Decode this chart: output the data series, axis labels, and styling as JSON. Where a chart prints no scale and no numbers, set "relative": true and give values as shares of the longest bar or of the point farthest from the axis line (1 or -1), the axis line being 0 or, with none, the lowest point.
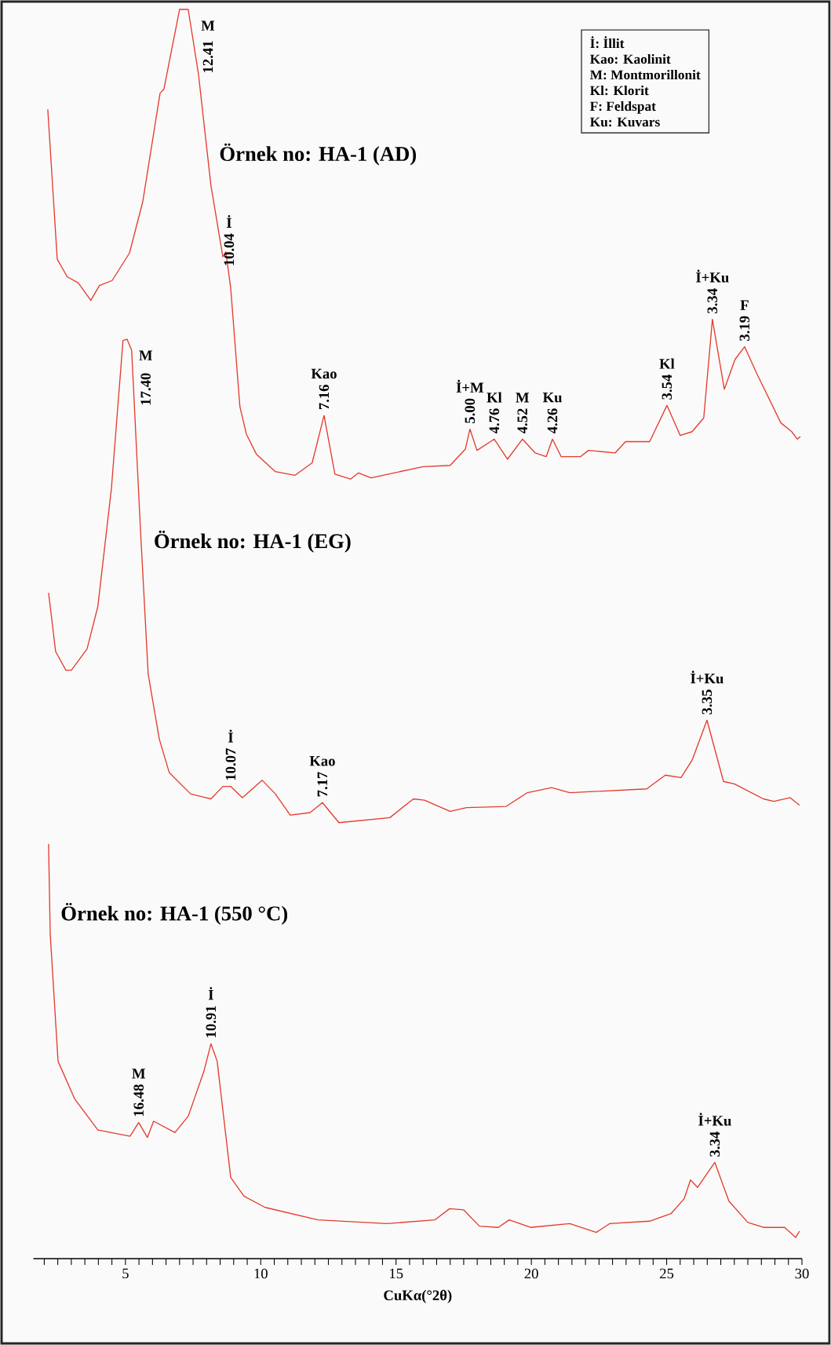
{
  "chart_data": {
    "type": "line",
    "relative": true,
    "xlabel": "CuKα(°2θ)",
    "xlim": [
      1.6,
      30
    ],
    "xticks": [
      {
        "value": 2,
        "label": null
      },
      {
        "value": 2.5,
        "label": null
      },
      {
        "value": 3,
        "label": null
      },
      {
        "value": 3.5,
        "label": null
      },
      {
        "value": 4,
        "label": null
      },
      {
        "value": 4.5,
        "label": null
      },
      5,
      {
        "value": 5.5,
        "label": null
      },
      {
        "value": 6,
        "label": null
      },
      {
        "value": 6.5,
        "label": null
      },
      {
        "value": 7,
        "label": null
      },
      {
        "value": 7.5,
        "label": null
      },
      {
        "value": 8,
        "label": null
      },
      {
        "value": 8.5,
        "label": null
      },
      {
        "value": 9,
        "label": null
      },
      {
        "value": 9.5,
        "label": null
      },
      10,
      {
        "value": 10.5,
        "label": null
      },
      {
        "value": 11,
        "label": null
      },
      {
        "value": 11.5,
        "label": null
      },
      {
        "value": 12,
        "label": null
      },
      {
        "value": 12.5,
        "label": null
      },
      {
        "value": 13,
        "label": null
      },
      {
        "value": 13.5,
        "label": null
      },
      {
        "value": 14,
        "label": null
      },
      {
        "value": 14.5,
        "label": null
      },
      15,
      {
        "value": 15.5,
        "label": null
      },
      {
        "value": 16,
        "label": null
      },
      {
        "value": 16.5,
        "label": null
      },
      {
        "value": 17,
        "label": null
      },
      {
        "value": 17.5,
        "label": null
      },
      {
        "value": 18,
        "label": null
      },
      {
        "value": 18.5,
        "label": null
      },
      {
        "value": 19,
        "label": null
      },
      {
        "value": 19.5,
        "label": null
      },
      20,
      {
        "value": 20.5,
        "label": null
      },
      {
        "value": 21,
        "label": null
      },
      {
        "value": 21.5,
        "label": null
      },
      {
        "value": 22,
        "label": null
      },
      {
        "value": 22.5,
        "label": null
      },
      {
        "value": 23,
        "label": null
      },
      {
        "value": 23.5,
        "label": null
      },
      {
        "value": 24,
        "label": null
      },
      {
        "value": 24.5,
        "label": null
      },
      25,
      {
        "value": 25.5,
        "label": null
      },
      {
        "value": 26,
        "label": null
      },
      {
        "value": 26.5,
        "label": null
      },
      {
        "value": 27,
        "label": null
      },
      {
        "value": 27.5,
        "label": null
      },
      {
        "value": 28,
        "label": null
      },
      {
        "value": 28.5,
        "label": null
      },
      {
        "value": 29,
        "label": null
      },
      {
        "value": 29.5,
        "label": null
      },
      30
    ],
    "series": [
      {
        "name": "Örnek no: HA-1 (AD)",
        "color": "#e53b2c",
        "x": [
          2.13,
          2.48,
          2.85,
          3.26,
          3.72,
          4.04,
          4.51,
          5.15,
          5.64,
          6.28,
          6.42,
          7.0,
          7.32,
          7.7,
          8.16,
          8.6,
          8.71,
          8.89,
          9.23,
          9.47,
          9.84,
          10.54,
          11.26,
          11.9,
          12.34,
          12.74,
          13.32,
          13.61,
          14.08,
          16.0,
          17.0,
          17.56,
          17.73,
          17.99,
          18.63,
          19.12,
          19.67,
          20.14,
          20.55,
          20.78,
          21.1,
          21.82,
          22.11,
          23.1,
          23.48,
          24.37,
          25.01,
          25.5,
          25.94,
          26.37,
          26.69,
          27.13,
          27.53,
          27.88,
          28.32,
          29.22,
          29.62,
          29.83,
          29.94
        ],
        "values": [
          0.92,
          0.8,
          0.786,
          0.781,
          0.767,
          0.779,
          0.783,
          0.805,
          0.846,
          0.933,
          0.936,
          1.0,
          1.0,
          0.948,
          0.859,
          0.802,
          0.806,
          0.777,
          0.682,
          0.66,
          0.644,
          0.63,
          0.627,
          0.637,
          0.675,
          0.628,
          0.624,
          0.629,
          0.625,
          0.634,
          0.635,
          0.648,
          0.664,
          0.647,
          0.656,
          0.64,
          0.656,
          0.645,
          0.642,
          0.656,
          0.642,
          0.642,
          0.647,
          0.645,
          0.654,
          0.654,
          0.683,
          0.659,
          0.662,
          0.673,
          0.752,
          0.696,
          0.72,
          0.73,
          0.709,
          0.669,
          0.662,
          0.656,
          0.658
        ]
      },
      {
        "name": "Örnek no: HA-1 (EG)",
        "color": "#e53b2c",
        "x": [
          2.16,
          2.42,
          2.8,
          3.0,
          3.58,
          3.98,
          4.48,
          4.91,
          5.06,
          5.23,
          5.55,
          5.84,
          6.25,
          6.62,
          7.41,
          8.16,
          8.6,
          8.89,
          9.32,
          10.05,
          10.54,
          11.09,
          11.82,
          12.28,
          12.89,
          14.77,
          15.64,
          16.05,
          17.0,
          17.6,
          19.07,
          19.85,
          20.75,
          21.42,
          24.26,
          24.95,
          25.53,
          25.94,
          26.49,
          27.1,
          27.5,
          28.58,
          28.96,
          29.56,
          29.91
        ],
        "values": [
          0.533,
          0.486,
          0.471,
          0.471,
          0.488,
          0.522,
          0.616,
          0.735,
          0.736,
          0.727,
          0.586,
          0.468,
          0.416,
          0.389,
          0.372,
          0.368,
          0.378,
          0.378,
          0.369,
          0.383,
          0.372,
          0.355,
          0.357,
          0.365,
          0.349,
          0.353,
          0.368,
          0.367,
          0.358,
          0.361,
          0.362,
          0.373,
          0.377,
          0.373,
          0.376,
          0.387,
          0.385,
          0.399,
          0.431,
          0.382,
          0.38,
          0.368,
          0.366,
          0.369,
          0.363
        ]
      },
      {
        "name": "Örnek no: HA-1 (550 °C)",
        "color": "#e53b2c",
        "x": [
          2.16,
          2.22,
          2.51,
          3.12,
          3.98,
          5.17,
          5.49,
          5.81,
          6.04,
          6.83,
          7.32,
          7.9,
          8.16,
          8.39,
          8.89,
          9.38,
          10.16,
          12.11,
          14.66,
          16.43,
          16.98,
          17.5,
          18.08,
          18.78,
          19.18,
          19.97,
          21.42,
          22.4,
          22.89,
          24.37,
          25.16,
          25.65,
          25.88,
          26.14,
          26.78,
          27.3,
          28.0,
          28.58,
          29.36,
          29.77,
          29.91
        ],
        "values": [
          0.332,
          0.26,
          0.158,
          0.128,
          0.103,
          0.098,
          0.109,
          0.097,
          0.11,
          0.101,
          0.114,
          0.15,
          0.172,
          0.158,
          0.065,
          0.05,
          0.041,
          0.031,
          0.028,
          0.031,
          0.04,
          0.039,
          0.026,
          0.025,
          0.031,
          0.025,
          0.028,
          0.021,
          0.028,
          0.03,
          0.036,
          0.048,
          0.063,
          0.057,
          0.077,
          0.046,
          0.029,
          0.025,
          0.025,
          0.017,
          0.022
        ]
      }
    ],
    "annotations": [
      "İ:  İllit",
      "Kao:  Kaolinit",
      "M:  Montmorillonit",
      "Kl:  Klorit",
      "F:  Feldspat",
      "Ku:  Kuvars",
      "M",
      "12.41",
      "İ",
      {
        "text": "10.04",
        "x": 8.83,
        "y": 0.79
      },
      "Kao",
      {
        "text": "7.16",
        "x": 12.34,
        "y": 0.675
      },
      "İ+M",
      {
        "text": "5.00",
        "x": 17.73,
        "y": 0.664
      },
      "Kl",
      {
        "text": "4.76",
        "x": 18.63,
        "y": 0.656
      },
      "M",
      {
        "text": "4.52",
        "x": 19.67,
        "y": 0.656
      },
      "Ku",
      {
        "text": "4.26",
        "x": 20.78,
        "y": 0.656
      },
      "Kl",
      {
        "text": "3.54",
        "x": 25.01,
        "y": 0.683
      },
      "İ+Ku",
      {
        "text": "3.34",
        "x": 26.69,
        "y": 0.752
      },
      "F",
      {
        "text": "3.19",
        "x": 27.88,
        "y": 0.73
      },
      "M",
      "17.40",
      "İ",
      {
        "text": "10.07",
        "x": 8.89,
        "y": 0.378
      },
      "Kao",
      {
        "text": "7.17",
        "x": 12.28,
        "y": 0.365
      },
      "İ+Ku",
      {
        "text": "3.35",
        "x": 26.49,
        "y": 0.431
      },
      "M",
      {
        "text": "16.48",
        "x": 5.49,
        "y": 0.109
      },
      "İ",
      {
        "text": "10.91",
        "x": 8.16,
        "y": 0.172
      },
      "İ+Ku",
      {
        "text": "3.34",
        "x": 26.78,
        "y": 0.077
      }
    ]
  }
}
